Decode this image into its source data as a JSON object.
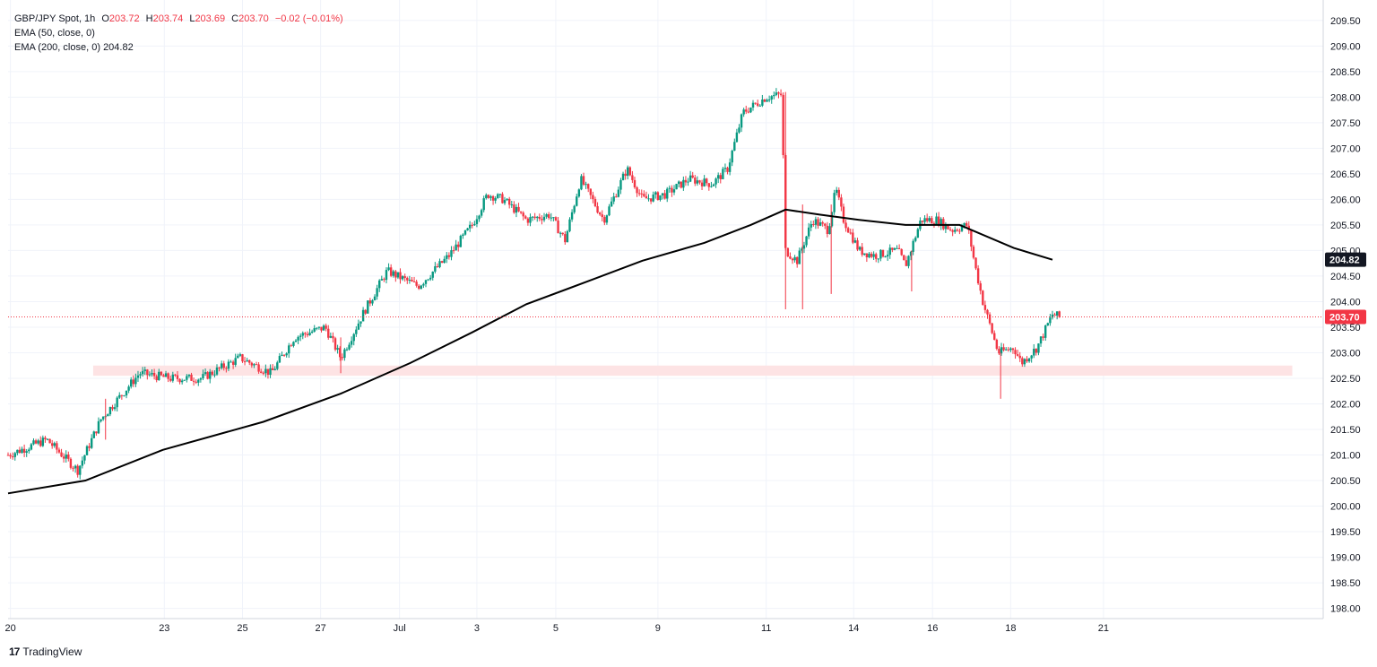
{
  "legend": {
    "symbol": "GBP/JPY Spot, 1h",
    "open_label": "O",
    "open": "203.72",
    "high_label": "H",
    "high": "203.74",
    "low_label": "L",
    "low": "203.69",
    "close_label": "C",
    "close": "203.70",
    "change": "−0.02 (−0.01%)",
    "ema50": "EMA (50, close, 0)",
    "ema200": "EMA (200, close, 0)",
    "ema200_value": "204.82"
  },
  "brand": {
    "logo": "17",
    "name": "TradingView"
  },
  "colors": {
    "up": "#089981",
    "down": "#f23645",
    "ema": "#000000",
    "zone": "#fde3e4",
    "grid": "#f0f3fa",
    "last_price": "#f23645",
    "ema_badge": "#131722"
  },
  "chart_data": {
    "type": "line",
    "title": "GBP/JPY Spot, 1h",
    "ylim": [
      197.8,
      209.9
    ],
    "y_ticks": [
      "198.00",
      "198.50",
      "199.00",
      "199.50",
      "200.00",
      "200.50",
      "201.00",
      "201.50",
      "202.00",
      "202.50",
      "203.00",
      "203.50",
      "204.00",
      "204.50",
      "205.00",
      "205.50",
      "206.00",
      "206.50",
      "207.00",
      "207.50",
      "208.00",
      "208.50",
      "209.00",
      "209.50"
    ],
    "x_ticks": [
      "20",
      "23",
      "25",
      "27",
      "Jul",
      "3",
      "5",
      "9",
      "11",
      "14",
      "16",
      "18",
      "21"
    ],
    "price_path": [
      {
        "x": 0,
        "y": 201.0
      },
      {
        "x": 5,
        "y": 201.3
      },
      {
        "x": 9,
        "y": 200.7
      },
      {
        "x": 12,
        "y": 201.7
      },
      {
        "x": 17,
        "y": 202.6
      },
      {
        "x": 21,
        "y": 202.5
      },
      {
        "x": 25,
        "y": 202.5
      },
      {
        "x": 30,
        "y": 202.9
      },
      {
        "x": 34,
        "y": 202.6
      },
      {
        "x": 37,
        "y": 203.3
      },
      {
        "x": 41,
        "y": 203.5
      },
      {
        "x": 43,
        "y": 202.9
      },
      {
        "x": 46,
        "y": 203.8
      },
      {
        "x": 49,
        "y": 204.6
      },
      {
        "x": 53,
        "y": 204.3
      },
      {
        "x": 57,
        "y": 204.9
      },
      {
        "x": 60,
        "y": 205.5
      },
      {
        "x": 62,
        "y": 206.1
      },
      {
        "x": 64,
        "y": 206.0
      },
      {
        "x": 67,
        "y": 205.6
      },
      {
        "x": 70,
        "y": 205.7
      },
      {
        "x": 72,
        "y": 205.2
      },
      {
        "x": 74,
        "y": 206.4
      },
      {
        "x": 77,
        "y": 205.6
      },
      {
        "x": 80,
        "y": 206.6
      },
      {
        "x": 82,
        "y": 206.0
      },
      {
        "x": 85,
        "y": 206.1
      },
      {
        "x": 88,
        "y": 206.4
      },
      {
        "x": 91,
        "y": 206.3
      },
      {
        "x": 93,
        "y": 206.6
      },
      {
        "x": 95,
        "y": 207.7
      },
      {
        "x": 98,
        "y": 208.0
      },
      {
        "x": 100,
        "y": 208.05
      },
      {
        "x": 100.5,
        "y": 205.0
      },
      {
        "x": 102,
        "y": 204.8
      },
      {
        "x": 104,
        "y": 205.6
      },
      {
        "x": 106,
        "y": 205.4
      },
      {
        "x": 107,
        "y": 206.2
      },
      {
        "x": 108,
        "y": 205.6
      },
      {
        "x": 110,
        "y": 205.0
      },
      {
        "x": 112,
        "y": 204.9
      },
      {
        "x": 115,
        "y": 205.0
      },
      {
        "x": 116,
        "y": 204.7
      },
      {
        "x": 118,
        "y": 205.6
      },
      {
        "x": 120,
        "y": 205.6
      },
      {
        "x": 122,
        "y": 205.4
      },
      {
        "x": 124,
        "y": 205.5
      },
      {
        "x": 125,
        "y": 204.7
      },
      {
        "x": 126,
        "y": 204.0
      },
      {
        "x": 128,
        "y": 203.0
      },
      {
        "x": 130,
        "y": 203.1
      },
      {
        "x": 131,
        "y": 202.8
      },
      {
        "x": 133,
        "y": 203.1
      },
      {
        "x": 135,
        "y": 203.75
      },
      {
        "x": 136,
        "y": 203.7
      }
    ],
    "ema200_path": [
      {
        "x": 0,
        "y": 200.25
      },
      {
        "x": 10,
        "y": 200.5
      },
      {
        "x": 20,
        "y": 201.1
      },
      {
        "x": 33,
        "y": 201.65
      },
      {
        "x": 43,
        "y": 202.2
      },
      {
        "x": 52,
        "y": 202.8
      },
      {
        "x": 60,
        "y": 203.4
      },
      {
        "x": 67,
        "y": 203.95
      },
      {
        "x": 75,
        "y": 204.4
      },
      {
        "x": 82,
        "y": 204.8
      },
      {
        "x": 90,
        "y": 205.15
      },
      {
        "x": 96,
        "y": 205.5
      },
      {
        "x": 100.5,
        "y": 205.8
      },
      {
        "x": 105,
        "y": 205.7
      },
      {
        "x": 110,
        "y": 205.6
      },
      {
        "x": 116,
        "y": 205.5
      },
      {
        "x": 123,
        "y": 205.5
      },
      {
        "x": 130,
        "y": 205.05
      },
      {
        "x": 135,
        "y": 204.82
      }
    ],
    "support_zone": [
      202.55,
      202.75
    ],
    "last_price": 203.7,
    "ema200_value": 204.82
  }
}
